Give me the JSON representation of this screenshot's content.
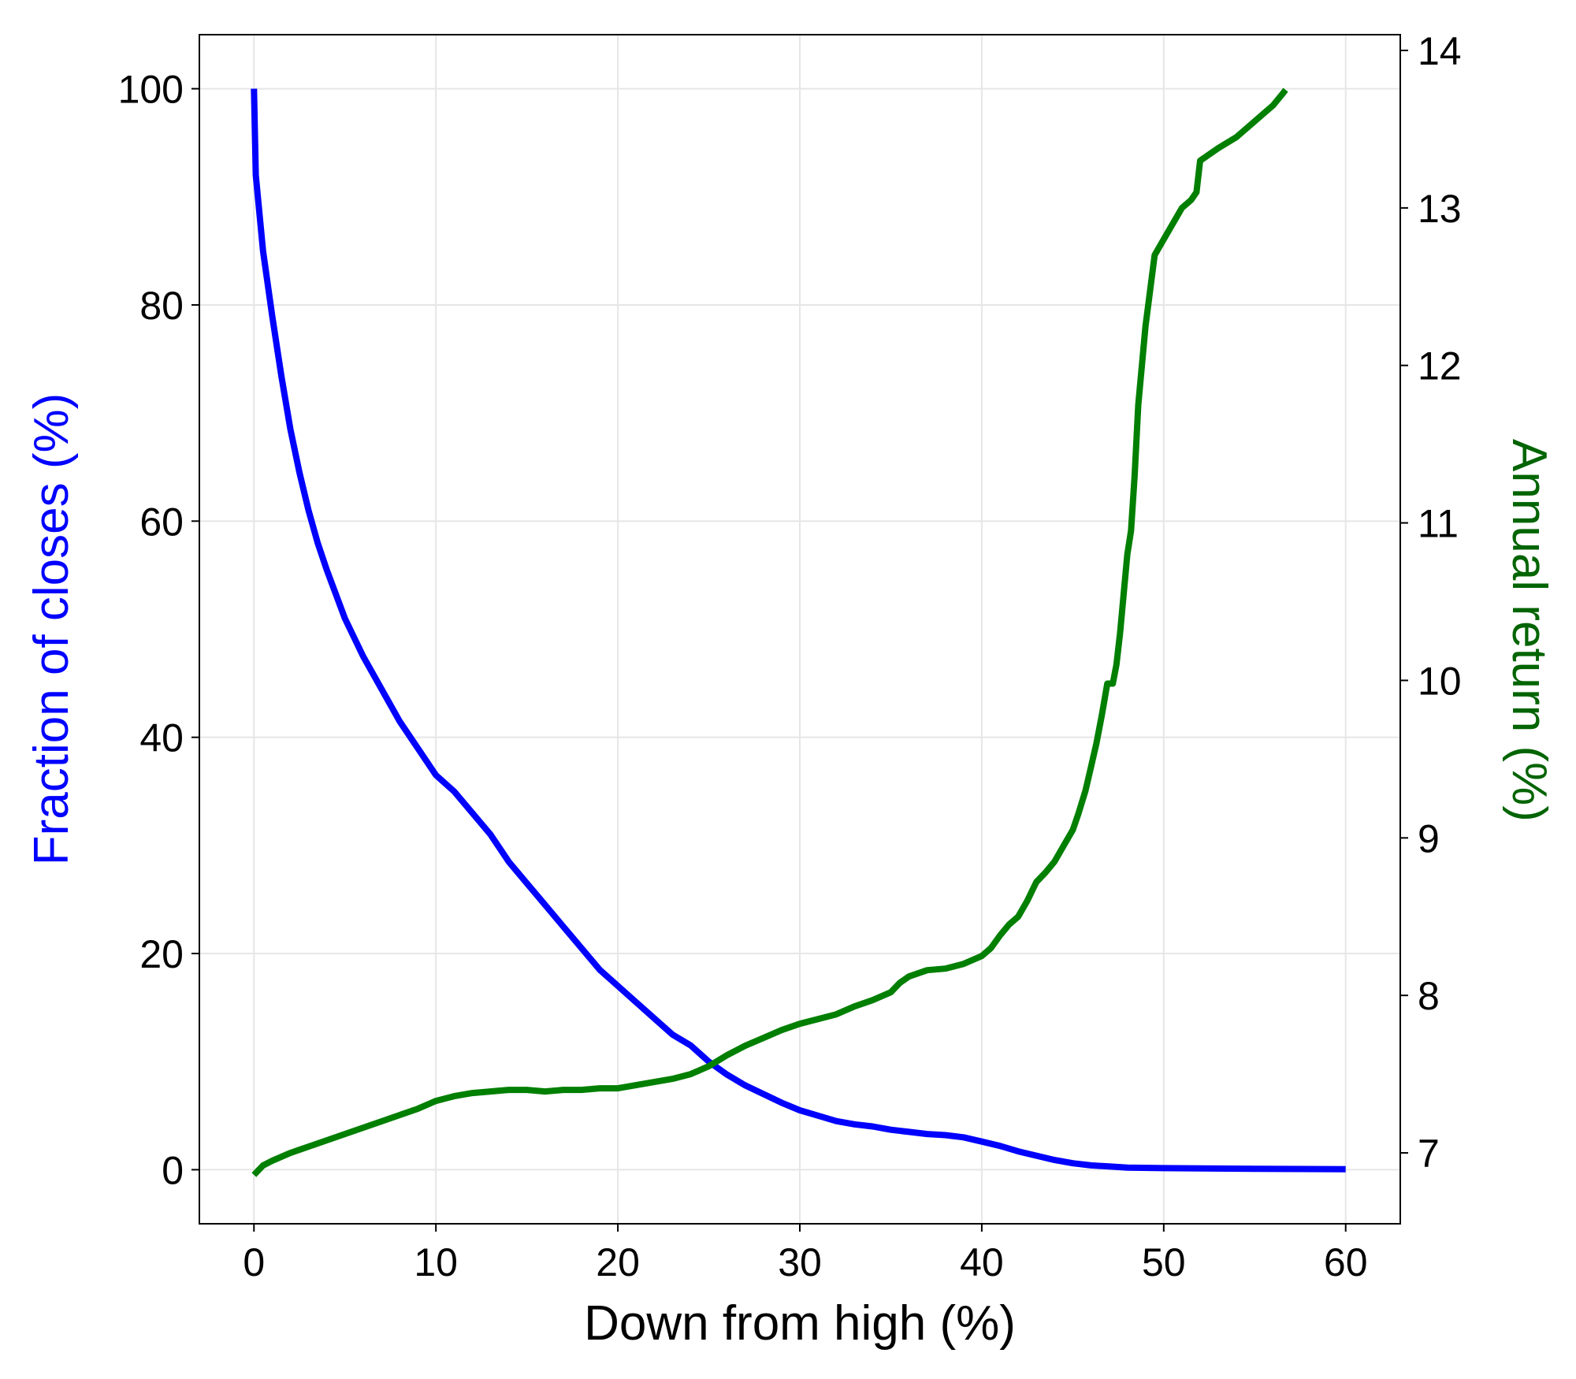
{
  "chart_data": {
    "type": "line",
    "xlabel": "Down from high (%)",
    "ylabel_left": "Fraction of closes (%)",
    "ylabel_right": "Annual return (%)",
    "xlim": [
      -3,
      63
    ],
    "ylim_left": [
      -5,
      105
    ],
    "ylim_right": [
      6.55,
      14.1
    ],
    "xticks": [
      0,
      10,
      20,
      30,
      40,
      50,
      60
    ],
    "yticks_left": [
      0,
      20,
      40,
      60,
      80,
      100
    ],
    "yticks_right": [
      7,
      8,
      9,
      10,
      11,
      12,
      13,
      14
    ],
    "grid": true,
    "colors": {
      "left": "#0000ff",
      "right": "#007f00",
      "right_label": "#006400",
      "grid": "#e6e6e6"
    },
    "series": [
      {
        "axis": "left",
        "color": "#0000ff",
        "x": [
          0,
          0.1,
          0.5,
          1,
          1.5,
          2,
          2.5,
          3,
          3.5,
          4,
          5,
          6,
          7,
          8,
          9,
          10,
          11,
          12,
          13,
          14,
          15,
          16,
          17,
          18,
          19,
          20,
          21,
          22,
          23,
          24,
          25,
          26,
          27,
          28,
          29,
          30,
          31,
          32,
          33,
          34,
          35,
          36,
          37,
          38,
          39,
          40,
          41,
          42,
          43,
          44,
          45,
          46,
          47,
          48,
          50,
          55,
          60
        ],
        "y": [
          100,
          92,
          85,
          79,
          73.5,
          68.5,
          64.5,
          61,
          58,
          55.5,
          51,
          47.5,
          44.5,
          41.5,
          39,
          36.5,
          35,
          33,
          31,
          28.5,
          26.5,
          24.5,
          22.5,
          20.5,
          18.5,
          17,
          15.5,
          14,
          12.5,
          11.5,
          10,
          8.8,
          7.8,
          7,
          6.2,
          5.5,
          5,
          4.5,
          4.2,
          4,
          3.7,
          3.5,
          3.3,
          3.2,
          3,
          2.6,
          2.2,
          1.7,
          1.3,
          0.9,
          0.6,
          0.4,
          0.3,
          0.2,
          0.15,
          0.08,
          0.05
        ]
      },
      {
        "axis": "right",
        "color": "#007f00",
        "x": [
          0,
          0.5,
          1,
          2,
          3,
          4,
          5,
          6,
          7,
          8,
          9,
          10,
          11,
          12,
          13,
          14,
          15,
          16,
          17,
          18,
          19,
          20,
          21,
          22,
          23,
          24,
          25,
          26,
          27,
          28,
          29,
          30,
          31,
          32,
          33,
          34,
          35,
          35.5,
          36,
          37,
          38,
          39,
          40,
          40.5,
          41,
          41.5,
          42,
          42.5,
          43,
          43.5,
          44,
          44.5,
          45,
          45.3,
          45.7,
          46,
          46.3,
          46.6,
          46.9,
          47.2,
          47.4,
          47.6,
          47.8,
          48,
          48.2,
          48.4,
          48.6,
          48.8,
          49,
          49.5,
          50,
          50.5,
          51,
          51.5,
          51.8,
          52,
          53,
          54,
          55,
          55.5,
          56,
          56.5,
          56.7
        ],
        "y": [
          6.86,
          6.92,
          6.95,
          7.0,
          7.04,
          7.08,
          7.12,
          7.16,
          7.2,
          7.24,
          7.28,
          7.33,
          7.36,
          7.38,
          7.39,
          7.4,
          7.4,
          7.39,
          7.4,
          7.4,
          7.41,
          7.41,
          7.43,
          7.45,
          7.47,
          7.5,
          7.55,
          7.62,
          7.68,
          7.73,
          7.78,
          7.82,
          7.85,
          7.88,
          7.93,
          7.97,
          8.02,
          8.08,
          8.12,
          8.16,
          8.17,
          8.2,
          8.25,
          8.3,
          8.38,
          8.45,
          8.5,
          8.6,
          8.72,
          8.78,
          8.85,
          8.95,
          9.05,
          9.15,
          9.3,
          9.45,
          9.6,
          9.78,
          9.98,
          9.98,
          10.1,
          10.3,
          10.55,
          10.8,
          10.95,
          11.3,
          11.75,
          12.0,
          12.25,
          12.7,
          12.8,
          12.9,
          13.0,
          13.05,
          13.1,
          13.3,
          13.38,
          13.45,
          13.55,
          13.6,
          13.65,
          13.72,
          13.75
        ]
      }
    ]
  }
}
